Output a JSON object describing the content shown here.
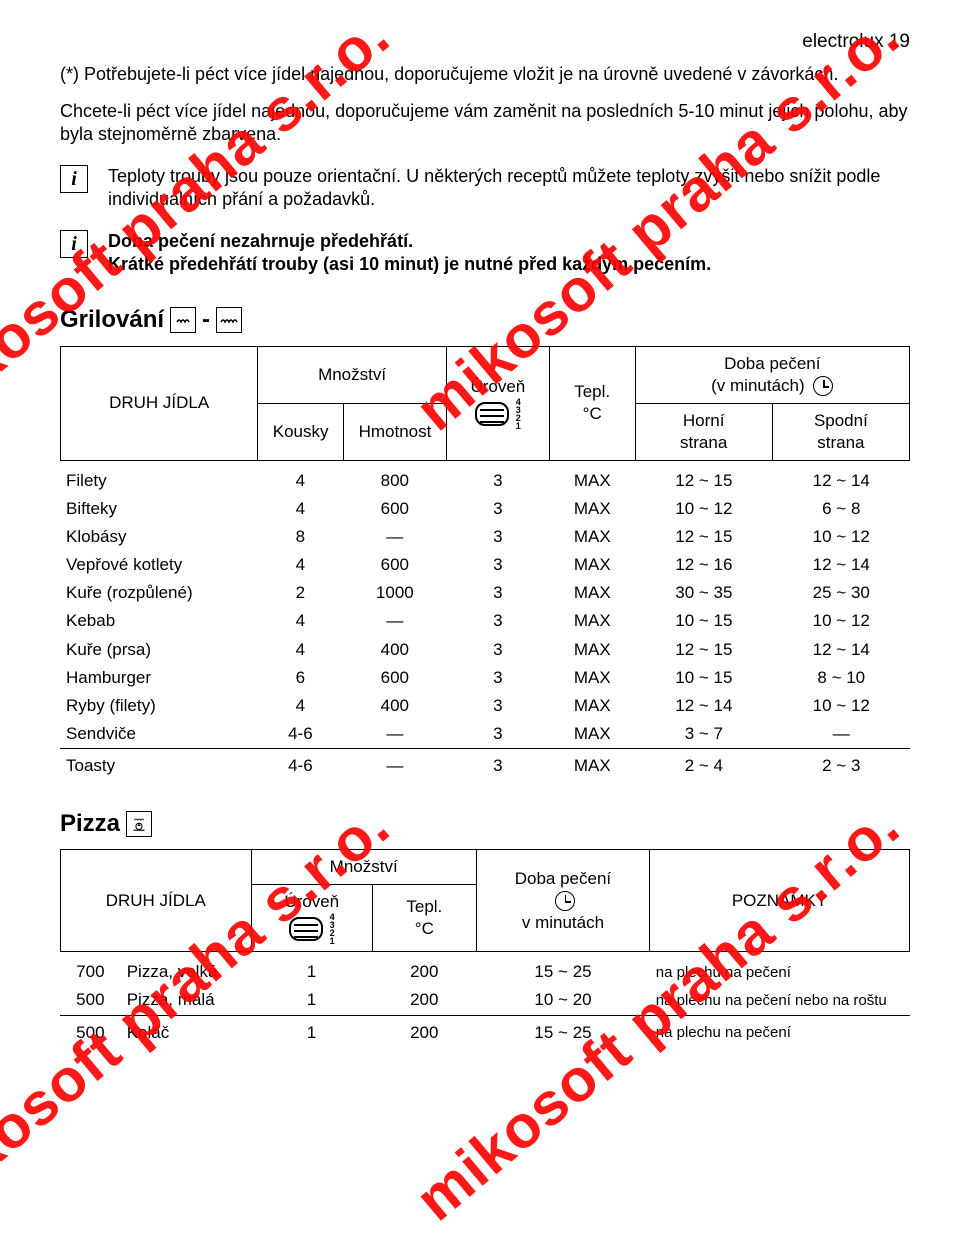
{
  "header": {
    "brand": "electrolux",
    "page": "19"
  },
  "paragraphs": {
    "p1": "(*) Potřebujete-li péct více jídel najednou, doporučujeme vložit je na úrovně uvedené v závorkách.",
    "p2": "Chcete-li péct více jídel najednou, doporučujeme vám zaměnit na posledních 5-10 minut jejich polohu, aby byla stejnoměrně zbarvena."
  },
  "info1": "Teploty trouby jsou pouze orientační. U některých receptů můžete teploty zvýšit nebo snížit podle individuálních přání a požadavků.",
  "info2_l1": "Doba pečení nezahrnuje předehřátí.",
  "info2_l2": "Krátké předehřátí trouby (asi 10 minut) je nutné před každým pečením.",
  "grill": {
    "title": "Grilování",
    "headers": {
      "food": "DRUH JÍDLA",
      "qty": "Množství",
      "pieces": "Kousky",
      "weight": "Hmotnost",
      "level": "Úroveň",
      "temp_l1": "Tepl.",
      "temp_l2": "°C",
      "time": "Doba pečení",
      "time_sub": "(v minutách)",
      "top": "Horní",
      "top2": "strana",
      "bottom": "Spodní",
      "bottom2": "strana"
    },
    "rows": [
      {
        "food": "Filety",
        "pieces": "4",
        "weight": "800",
        "level": "3",
        "temp": "MAX",
        "top": "12 ~ 15",
        "bottom": "12 ~ 14"
      },
      {
        "food": "Bifteky",
        "pieces": "4",
        "weight": "600",
        "level": "3",
        "temp": "MAX",
        "top": "10 ~ 12",
        "bottom": "6 ~ 8"
      },
      {
        "food": "Klobásy",
        "pieces": "8",
        "weight": "—",
        "level": "3",
        "temp": "MAX",
        "top": "12 ~ 15",
        "bottom": "10 ~ 12"
      },
      {
        "food": "Vepřové kotlety",
        "pieces": "4",
        "weight": "600",
        "level": "3",
        "temp": "MAX",
        "top": "12 ~ 16",
        "bottom": "12 ~ 14"
      },
      {
        "food": "Kuře (rozpůlené)",
        "pieces": "2",
        "weight": "1000",
        "level": "3",
        "temp": "MAX",
        "top": "30 ~ 35",
        "bottom": "25 ~ 30"
      },
      {
        "food": "Kebab",
        "pieces": "4",
        "weight": "—",
        "level": "3",
        "temp": "MAX",
        "top": "10 ~ 15",
        "bottom": "10 ~ 12"
      },
      {
        "food": "Kuře (prsa)",
        "pieces": "4",
        "weight": "400",
        "level": "3",
        "temp": "MAX",
        "top": "12 ~ 15",
        "bottom": "12 ~ 14"
      },
      {
        "food": "Hamburger",
        "pieces": "6",
        "weight": "600",
        "level": "3",
        "temp": "MAX",
        "top": "10 ~ 15",
        "bottom": "8 ~ 10"
      },
      {
        "food": "Ryby (filety)",
        "pieces": "4",
        "weight": "400",
        "level": "3",
        "temp": "MAX",
        "top": "12 ~ 14",
        "bottom": "10 ~ 12"
      },
      {
        "food": "Sendviče",
        "pieces": "4-6",
        "weight": "—",
        "level": "3",
        "temp": "MAX",
        "top": "3 ~ 7",
        "bottom": "—"
      },
      {
        "food": "Toasty",
        "pieces": "4-6",
        "weight": "—",
        "level": "3",
        "temp": "MAX",
        "top": "2 ~ 4",
        "bottom": "2 ~ 3",
        "sep": true
      }
    ]
  },
  "pizza": {
    "title": "Pizza",
    "headers": {
      "food": "DRUH JÍDLA",
      "qty": "Množství",
      "level": "Úroveň",
      "temp_l1": "Tepl.",
      "temp_l2": "°C",
      "time": "Doba pečení",
      "time_sub": "v minutách",
      "notes": "POZNÁMKY"
    },
    "rows": [
      {
        "qty": "700",
        "food": "Pizza, velká",
        "level": "1",
        "temp": "200",
        "time": "15 ~ 25",
        "notes": "na plechu na pečení"
      },
      {
        "qty": "500",
        "food": "Pizza, malá",
        "level": "1",
        "temp": "200",
        "time": "10 ~ 20",
        "notes": "na plechu na pečení nebo na roštu"
      },
      {
        "qty": "500",
        "food": "Koláč",
        "level": "1",
        "temp": "200",
        "time": "15 ~ 25",
        "notes": "na plechu na pečení",
        "sep": true
      }
    ]
  },
  "watermark": "mikosoft praha s.r.o.",
  "level_nums": "4\n3\n2\n1",
  "colors": {
    "watermark": "#ff0000",
    "text": "#000000",
    "background": "#ffffff"
  }
}
